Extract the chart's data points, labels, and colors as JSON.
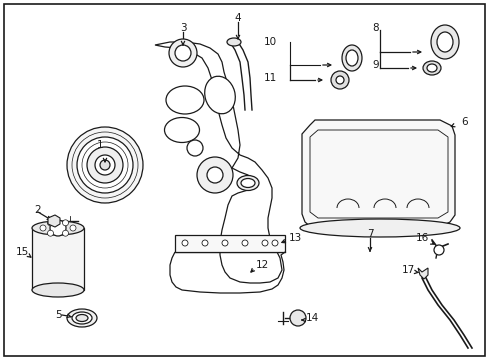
{
  "background_color": "#ffffff",
  "figsize": [
    4.89,
    3.6
  ],
  "dpi": 100,
  "ec": "#1a1a1a",
  "lw": 0.9
}
